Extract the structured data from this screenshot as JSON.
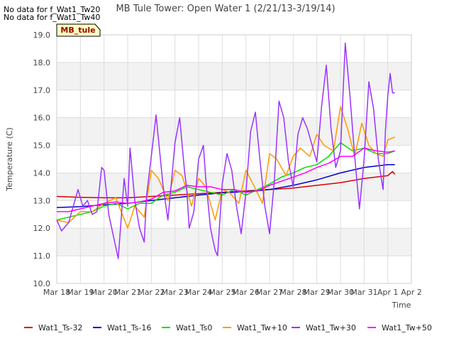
{
  "notes": [
    "No data for f_Wat1_Tw20",
    "No data for f_Wat1_Tw40"
  ],
  "site_tag": "MB_tule",
  "chart_data": {
    "type": "line",
    "title": "MB Tule Tower: Open Water 1 (2/21/13-3/19/14)",
    "xlabel": "Time",
    "ylabel": "Temperature (C)",
    "ylim": [
      10.0,
      19.0
    ],
    "xlim": [
      0,
      15
    ],
    "x_ticks": [
      "Mar 18",
      "Mar 19",
      "Mar 20",
      "Mar 21",
      "Mar 22",
      "Mar 23",
      "Mar 24",
      "Mar 25",
      "Mar 26",
      "Mar 27",
      "Mar 28",
      "Mar 29",
      "Mar 30",
      "Mar 31",
      "Apr 1",
      "Apr 2"
    ],
    "y_ticks": [
      "10.0",
      "11.0",
      "12.0",
      "13.0",
      "14.0",
      "15.0",
      "16.0",
      "17.0",
      "18.0",
      "19.0"
    ],
    "grid": true,
    "legend_position": "bottom",
    "series": [
      {
        "name": "Wat1_Ts-32",
        "color": "#dd0000",
        "x": [
          0,
          1,
          2,
          3,
          4,
          5,
          6,
          7,
          8,
          9,
          10,
          11,
          12,
          13,
          13.5,
          14.0,
          14.2,
          14.3
        ],
        "y": [
          13.15,
          13.12,
          13.1,
          13.1,
          13.15,
          13.2,
          13.25,
          13.3,
          13.35,
          13.4,
          13.45,
          13.55,
          13.65,
          13.8,
          13.85,
          13.9,
          14.05,
          13.95
        ]
      },
      {
        "name": "Wat1_Ts-16",
        "color": "#0000cc",
        "x": [
          0,
          1,
          2,
          3,
          4,
          5,
          6,
          7,
          8,
          9,
          10,
          11,
          12,
          13,
          14,
          14.3
        ],
        "y": [
          12.75,
          12.78,
          12.85,
          12.9,
          13.0,
          13.1,
          13.2,
          13.28,
          13.32,
          13.4,
          13.55,
          13.75,
          14.0,
          14.2,
          14.3,
          14.3
        ]
      },
      {
        "name": "Wat1_Ts0",
        "color": "#00dd00",
        "x": [
          0,
          0.5,
          1,
          1.5,
          2,
          2.5,
          3,
          3.5,
          4,
          4.5,
          5,
          5.5,
          6,
          6.5,
          7,
          7.5,
          8,
          8.5,
          9,
          9.5,
          10,
          10.5,
          11,
          11.5,
          12,
          12.5,
          13,
          13.5,
          14,
          14.3
        ],
        "y": [
          12.3,
          12.4,
          12.5,
          12.6,
          12.8,
          12.9,
          12.7,
          12.9,
          12.9,
          13.2,
          13.3,
          13.5,
          13.4,
          13.3,
          13.2,
          13.4,
          13.2,
          13.4,
          13.6,
          13.85,
          14.0,
          14.2,
          14.3,
          14.6,
          15.1,
          14.8,
          14.9,
          14.7,
          14.7,
          14.8
        ]
      },
      {
        "name": "Wat1_Tw+10",
        "color": "#ff9900",
        "x": [
          0,
          0.5,
          1,
          1.5,
          2,
          2.5,
          3,
          3.3,
          3.7,
          4,
          4.3,
          4.7,
          5,
          5.3,
          5.7,
          6,
          6.3,
          6.7,
          7,
          7.3,
          7.7,
          8,
          8.3,
          8.7,
          9,
          9.3,
          9.7,
          10,
          10.3,
          10.7,
          11,
          11.3,
          11.7,
          12,
          12.3,
          12.6,
          12.9,
          13.2,
          13.5,
          13.8,
          14.0,
          14.3
        ],
        "y": [
          12.3,
          12.2,
          12.6,
          12.6,
          12.9,
          13.1,
          12.0,
          12.8,
          12.4,
          14.1,
          13.8,
          13.0,
          14.1,
          13.9,
          12.8,
          13.8,
          13.5,
          12.3,
          13.4,
          13.3,
          12.9,
          14.1,
          13.6,
          12.9,
          14.7,
          14.5,
          13.9,
          14.6,
          14.9,
          14.6,
          15.4,
          15.0,
          14.8,
          16.4,
          15.6,
          14.6,
          15.8,
          15.0,
          14.7,
          14.6,
          15.2,
          15.3
        ]
      },
      {
        "name": "Wat1_Tw+30",
        "color": "#9933ff",
        "x": [
          0,
          0.2,
          0.5,
          0.9,
          1.1,
          1.3,
          1.5,
          1.7,
          1.9,
          2.0,
          2.2,
          2.6,
          2.85,
          3.0,
          3.1,
          3.3,
          3.5,
          3.7,
          3.8,
          4.0,
          4.2,
          4.5,
          4.7,
          4.8,
          5.0,
          5.2,
          5.4,
          5.5,
          5.6,
          5.8,
          6.0,
          6.2,
          6.3,
          6.5,
          6.7,
          6.8,
          7.0,
          7.2,
          7.4,
          7.6,
          7.8,
          8.0,
          8.2,
          8.4,
          8.6,
          8.8,
          9.0,
          9.2,
          9.4,
          9.6,
          9.8,
          10.0,
          10.2,
          10.4,
          10.6,
          10.8,
          11.0,
          11.2,
          11.4,
          11.6,
          11.8,
          12.0,
          12.2,
          12.4,
          12.6,
          12.8,
          13.0,
          13.2,
          13.4,
          13.6,
          13.8,
          13.9,
          14.0,
          14.1,
          14.2,
          14.3
        ],
        "y": [
          12.3,
          11.9,
          12.2,
          13.4,
          12.8,
          13.0,
          12.5,
          12.6,
          14.2,
          14.1,
          12.5,
          10.9,
          13.8,
          12.8,
          14.9,
          13.0,
          12.0,
          11.5,
          13.2,
          14.6,
          16.1,
          13.5,
          12.3,
          13.2,
          15.1,
          16.0,
          14.1,
          13.4,
          12.0,
          12.6,
          14.5,
          15.0,
          13.8,
          12.0,
          11.2,
          11.0,
          13.6,
          14.7,
          14.1,
          12.8,
          11.8,
          13.3,
          15.5,
          16.2,
          14.4,
          12.8,
          11.8,
          13.7,
          16.6,
          16.0,
          14.4,
          13.5,
          15.4,
          16.0,
          15.6,
          15.0,
          14.4,
          16.4,
          17.9,
          15.6,
          14.2,
          14.8,
          18.7,
          16.8,
          14.6,
          12.7,
          14.5,
          17.3,
          16.3,
          14.5,
          13.4,
          15.5,
          16.8,
          17.6,
          16.9,
          16.9
        ]
      },
      {
        "name": "Wat1_Tw+50",
        "color": "#ff00ff",
        "x": [
          0,
          0.5,
          1,
          1.5,
          2,
          2.5,
          3,
          3.5,
          4,
          4.5,
          5,
          5.5,
          6,
          6.5,
          7,
          7.5,
          8,
          8.5,
          9,
          9.5,
          10,
          10.5,
          11,
          11.5,
          12,
          12.5,
          13,
          13.5,
          14,
          14.3
        ],
        "y": [
          12.6,
          12.6,
          12.7,
          12.8,
          12.9,
          12.95,
          12.9,
          12.95,
          13.05,
          13.3,
          13.35,
          13.55,
          13.5,
          13.5,
          13.4,
          13.4,
          13.3,
          13.35,
          13.55,
          13.7,
          13.85,
          14.0,
          14.2,
          14.35,
          14.6,
          14.6,
          14.9,
          14.8,
          14.75,
          14.8
        ]
      }
    ]
  }
}
